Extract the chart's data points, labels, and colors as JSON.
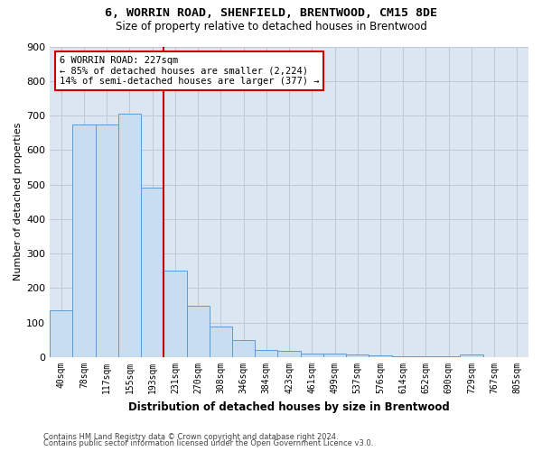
{
  "title": "6, WORRIN ROAD, SHENFIELD, BRENTWOOD, CM15 8DE",
  "subtitle": "Size of property relative to detached houses in Brentwood",
  "xlabel": "Distribution of detached houses by size in Brentwood",
  "ylabel": "Number of detached properties",
  "bin_labels": [
    "40sqm",
    "78sqm",
    "117sqm",
    "155sqm",
    "193sqm",
    "231sqm",
    "270sqm",
    "308sqm",
    "346sqm",
    "384sqm",
    "423sqm",
    "461sqm",
    "499sqm",
    "537sqm",
    "576sqm",
    "614sqm",
    "652sqm",
    "690sqm",
    "729sqm",
    "767sqm",
    "805sqm"
  ],
  "bar_values": [
    135,
    675,
    675,
    705,
    490,
    250,
    150,
    88,
    50,
    22,
    18,
    10,
    10,
    7,
    5,
    2,
    2,
    2,
    7,
    0,
    0
  ],
  "bar_color": "#c9ddf1",
  "bar_edge_color": "#5b9bd5",
  "property_label": "6 WORRIN ROAD: 227sqm",
  "annotation_line1": "← 85% of detached houses are smaller (2,224)",
  "annotation_line2": "14% of semi-detached houses are larger (377) →",
  "red_line_color": "#cc0000",
  "annotation_box_color": "#ffffff",
  "annotation_box_edge": "#cc0000",
  "grid_color": "#c0c8d8",
  "plot_bg_color": "#dce6f1",
  "ylim": [
    0,
    900
  ],
  "yticks": [
    0,
    100,
    200,
    300,
    400,
    500,
    600,
    700,
    800,
    900
  ],
  "footer_line1": "Contains HM Land Registry data © Crown copyright and database right 2024.",
  "footer_line2": "Contains public sector information licensed under the Open Government Licence v3.0."
}
